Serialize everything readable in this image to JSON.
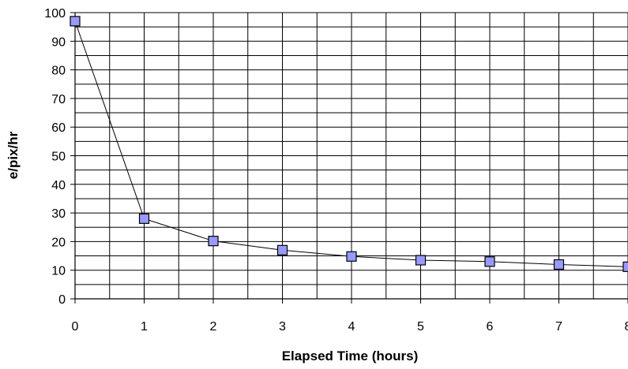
{
  "chart_data": {
    "type": "line",
    "title": "",
    "xlabel": "Elapsed Time (hours)",
    "ylabel": "e/pix/hr",
    "xlim": [
      0,
      8
    ],
    "ylim": [
      0,
      100
    ],
    "x_ticks": [
      "0",
      "1",
      "2",
      "3",
      "4",
      "5",
      "6",
      "7",
      "8"
    ],
    "y_ticks": [
      "0",
      "10",
      "20",
      "30",
      "40",
      "50",
      "60",
      "70",
      "80",
      "90",
      "100"
    ],
    "grid": true,
    "legend": "none",
    "series": [
      {
        "x": [
          0,
          1,
          2,
          3,
          4,
          5,
          6,
          7,
          8
        ],
        "y": [
          97,
          28,
          20.2,
          17,
          14.8,
          13.5,
          13,
          12,
          11.2
        ],
        "marker": "square",
        "marker_color": "#9999ff",
        "line_color": "#000000"
      }
    ]
  }
}
